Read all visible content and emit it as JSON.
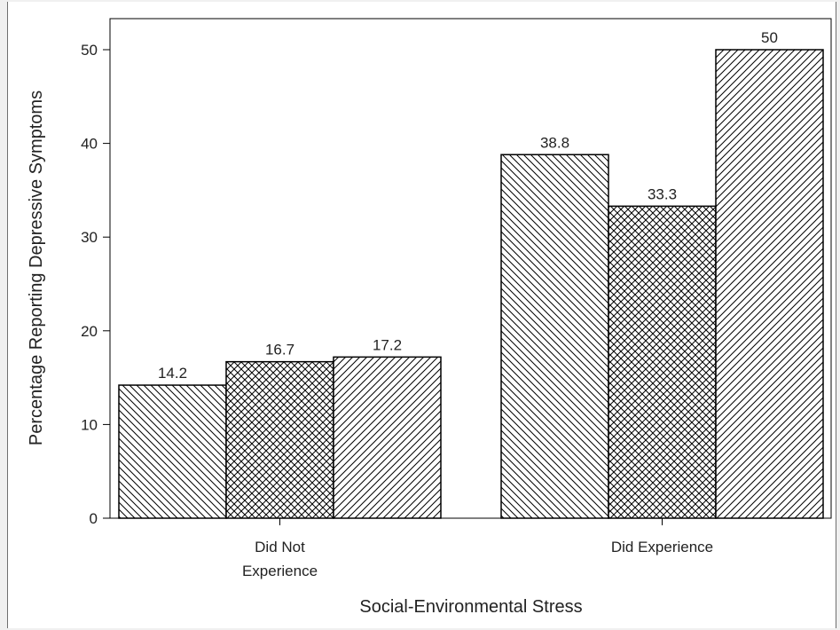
{
  "chart_data": {
    "type": "bar",
    "xlabel": "Social-Environmental Stress",
    "ylabel": "Percentage Reporting Depressive Symptoms",
    "ylim": [
      0,
      52
    ],
    "yticks": [
      0,
      10,
      20,
      30,
      40,
      50
    ],
    "categories": [
      [
        "Did Not",
        "Experience"
      ],
      [
        "Did Experience"
      ]
    ],
    "series": [
      {
        "pattern": "diagonal-backslash",
        "values": [
          14.2,
          38.8
        ],
        "labels": [
          "14.2",
          "38.8"
        ]
      },
      {
        "pattern": "crosshatch",
        "values": [
          16.7,
          33.3
        ],
        "labels": [
          "16.7",
          "33.3"
        ]
      },
      {
        "pattern": "diagonal-forwardslash",
        "values": [
          17.2,
          50
        ],
        "labels": [
          "17.2",
          "50"
        ]
      }
    ],
    "grid": false,
    "legend": "none",
    "colors": {
      "bar_fill": "#ffffff",
      "bar_stroke": "#000000",
      "hatch": "#000000",
      "axis": "#000000"
    }
  }
}
